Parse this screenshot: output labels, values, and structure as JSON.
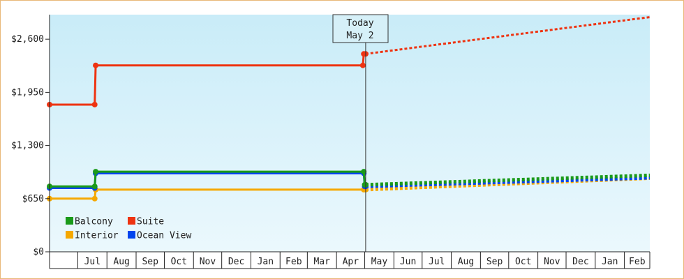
{
  "chart_data": {
    "type": "line",
    "title": "",
    "xlabel": "",
    "ylabel": "",
    "ylim": [
      0,
      2900
    ],
    "y_ticks": [
      0,
      650,
      1300,
      1950,
      2600
    ],
    "y_tick_labels": [
      "$0",
      "$650",
      "$1,300",
      "$1,950",
      "$2,600"
    ],
    "x_tick_labels": [
      "Jul",
      "Aug",
      "Sep",
      "Oct",
      "Nov",
      "Dec",
      "Jan",
      "Feb",
      "Mar",
      "Apr",
      "May",
      "Jun",
      "Jul",
      "Aug",
      "Sep",
      "Oct",
      "Nov",
      "Dec",
      "Jan",
      "Feb"
    ],
    "x_start": "2023-06-01",
    "x_end": "2025-02-28",
    "today": {
      "date": "2024-05-02",
      "label_line1": "Today",
      "label_line2": "May 2"
    },
    "legend_position": "bottom-left",
    "grid": false,
    "background_gradient": [
      "#c9ecf8",
      "#ebf8fd"
    ],
    "series": [
      {
        "name": "Balcony",
        "color": "#1a9a1a",
        "historical": [
          [
            "2023-06-01",
            800
          ],
          [
            "2023-07-19",
            800
          ],
          [
            "2023-07-20",
            980
          ],
          [
            "2024-04-30",
            980
          ],
          [
            "2024-05-01",
            820
          ],
          [
            "2024-05-02",
            820
          ]
        ],
        "forecast": [
          [
            "2024-05-02",
            820
          ],
          [
            "2025-02-28",
            935
          ]
        ]
      },
      {
        "name": "Suite",
        "color": "#ee3311",
        "historical": [
          [
            "2023-06-01",
            1800
          ],
          [
            "2023-07-19",
            1800
          ],
          [
            "2023-07-20",
            2280
          ],
          [
            "2024-04-29",
            2280
          ],
          [
            "2024-04-30",
            2420
          ],
          [
            "2024-05-02",
            2420
          ]
        ],
        "forecast": [
          [
            "2024-05-02",
            2420
          ],
          [
            "2025-02-28",
            2870
          ]
        ]
      },
      {
        "name": "Interior",
        "color": "#f5a800",
        "historical": [
          [
            "2023-06-01",
            650
          ],
          [
            "2023-07-19",
            650
          ],
          [
            "2023-07-20",
            760
          ],
          [
            "2024-04-30",
            760
          ],
          [
            "2024-05-02",
            760
          ]
        ],
        "forecast": [
          [
            "2024-05-02",
            760
          ],
          [
            "2025-02-28",
            900
          ]
        ]
      },
      {
        "name": "Ocean View",
        "color": "#0044ee",
        "historical": [
          [
            "2023-06-01",
            780
          ],
          [
            "2023-07-19",
            780
          ],
          [
            "2023-07-20",
            960
          ],
          [
            "2024-04-30",
            960
          ],
          [
            "2024-05-01",
            800
          ],
          [
            "2024-05-02",
            800
          ]
        ],
        "forecast": [
          [
            "2024-05-02",
            800
          ],
          [
            "2025-02-28",
            905
          ]
        ]
      }
    ]
  }
}
